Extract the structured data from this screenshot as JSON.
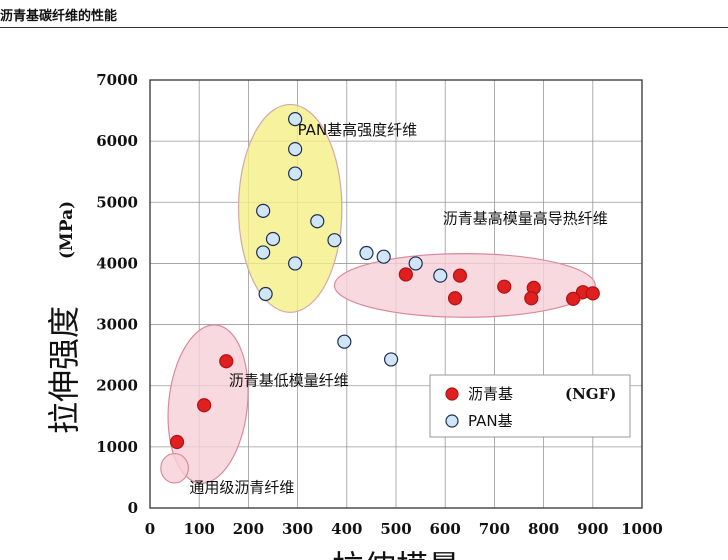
{
  "header": {
    "title": "沥青基碳纤维的性能"
  },
  "chart_data": {
    "type": "scatter",
    "ylabel_main": "拉伸强度",
    "ylabel_unit": "(MPa)",
    "xlabel": "拉伸模量",
    "xlim": [
      0,
      1000
    ],
    "ylim": [
      0,
      7000
    ],
    "xticks": [
      "0",
      "100",
      "200",
      "300",
      "400",
      "500",
      "600",
      "700",
      "800",
      "900",
      "1000"
    ],
    "yticks": [
      "0",
      "1000",
      "2000",
      "3000",
      "4000",
      "5000",
      "6000",
      "7000"
    ],
    "grid": true,
    "series": [
      {
        "name": "沥青基",
        "name_suffix": "(NGF)",
        "color": "#e02020",
        "points": [
          [
            55,
            1080
          ],
          [
            110,
            1680
          ],
          [
            155,
            2400
          ],
          [
            520,
            3820
          ],
          [
            630,
            3800
          ],
          [
            620,
            3430
          ],
          [
            720,
            3620
          ],
          [
            780,
            3600
          ],
          [
            775,
            3430
          ],
          [
            880,
            3530
          ],
          [
            860,
            3420
          ],
          [
            900,
            3510
          ]
        ]
      },
      {
        "name": "PAN基",
        "color": "#d0e6f6",
        "points": [
          [
            235,
            3500
          ],
          [
            230,
            4180
          ],
          [
            250,
            4400
          ],
          [
            230,
            4860
          ],
          [
            295,
            4000
          ],
          [
            295,
            5470
          ],
          [
            295,
            5870
          ],
          [
            295,
            6360
          ],
          [
            340,
            4690
          ],
          [
            375,
            4380
          ],
          [
            440,
            4170
          ],
          [
            475,
            4110
          ],
          [
            540,
            4000
          ],
          [
            590,
            3800
          ],
          [
            395,
            2720
          ],
          [
            490,
            2430
          ]
        ]
      }
    ],
    "annotations": [
      {
        "text": "PAN基高强度纤维",
        "x": 300,
        "y": 6100
      },
      {
        "text": "沥青基高模量高导热纤维",
        "x": 595,
        "y": 4650
      },
      {
        "text": "沥青基低模量纤维",
        "x": 160,
        "y": 2000
      },
      {
        "text": "通用级沥青纤维",
        "x": 80,
        "y": 250
      }
    ],
    "regions": [
      {
        "cx": 285,
        "cy": 4900,
        "rx": 105,
        "ry": 1700,
        "rot": 0,
        "fill": "#f4ef86",
        "stroke": "#d4a8a8"
      },
      {
        "cx": 640,
        "cy": 3640,
        "rx": 265,
        "ry": 520,
        "rot": 0,
        "fill": "#f7cfd8",
        "stroke": "#d98a9a"
      },
      {
        "cx": 118,
        "cy": 1700,
        "rx": 80,
        "ry": 1300,
        "rot": 6,
        "fill": "#f7cfd8",
        "stroke": "#d98a9a"
      },
      {
        "cx": 50,
        "cy": 650,
        "rx": 28,
        "ry": 240,
        "rot": 0,
        "fill": "#f7cfd8",
        "stroke": "#d98a9a"
      }
    ],
    "legend": {
      "position": "bottom-right"
    }
  }
}
